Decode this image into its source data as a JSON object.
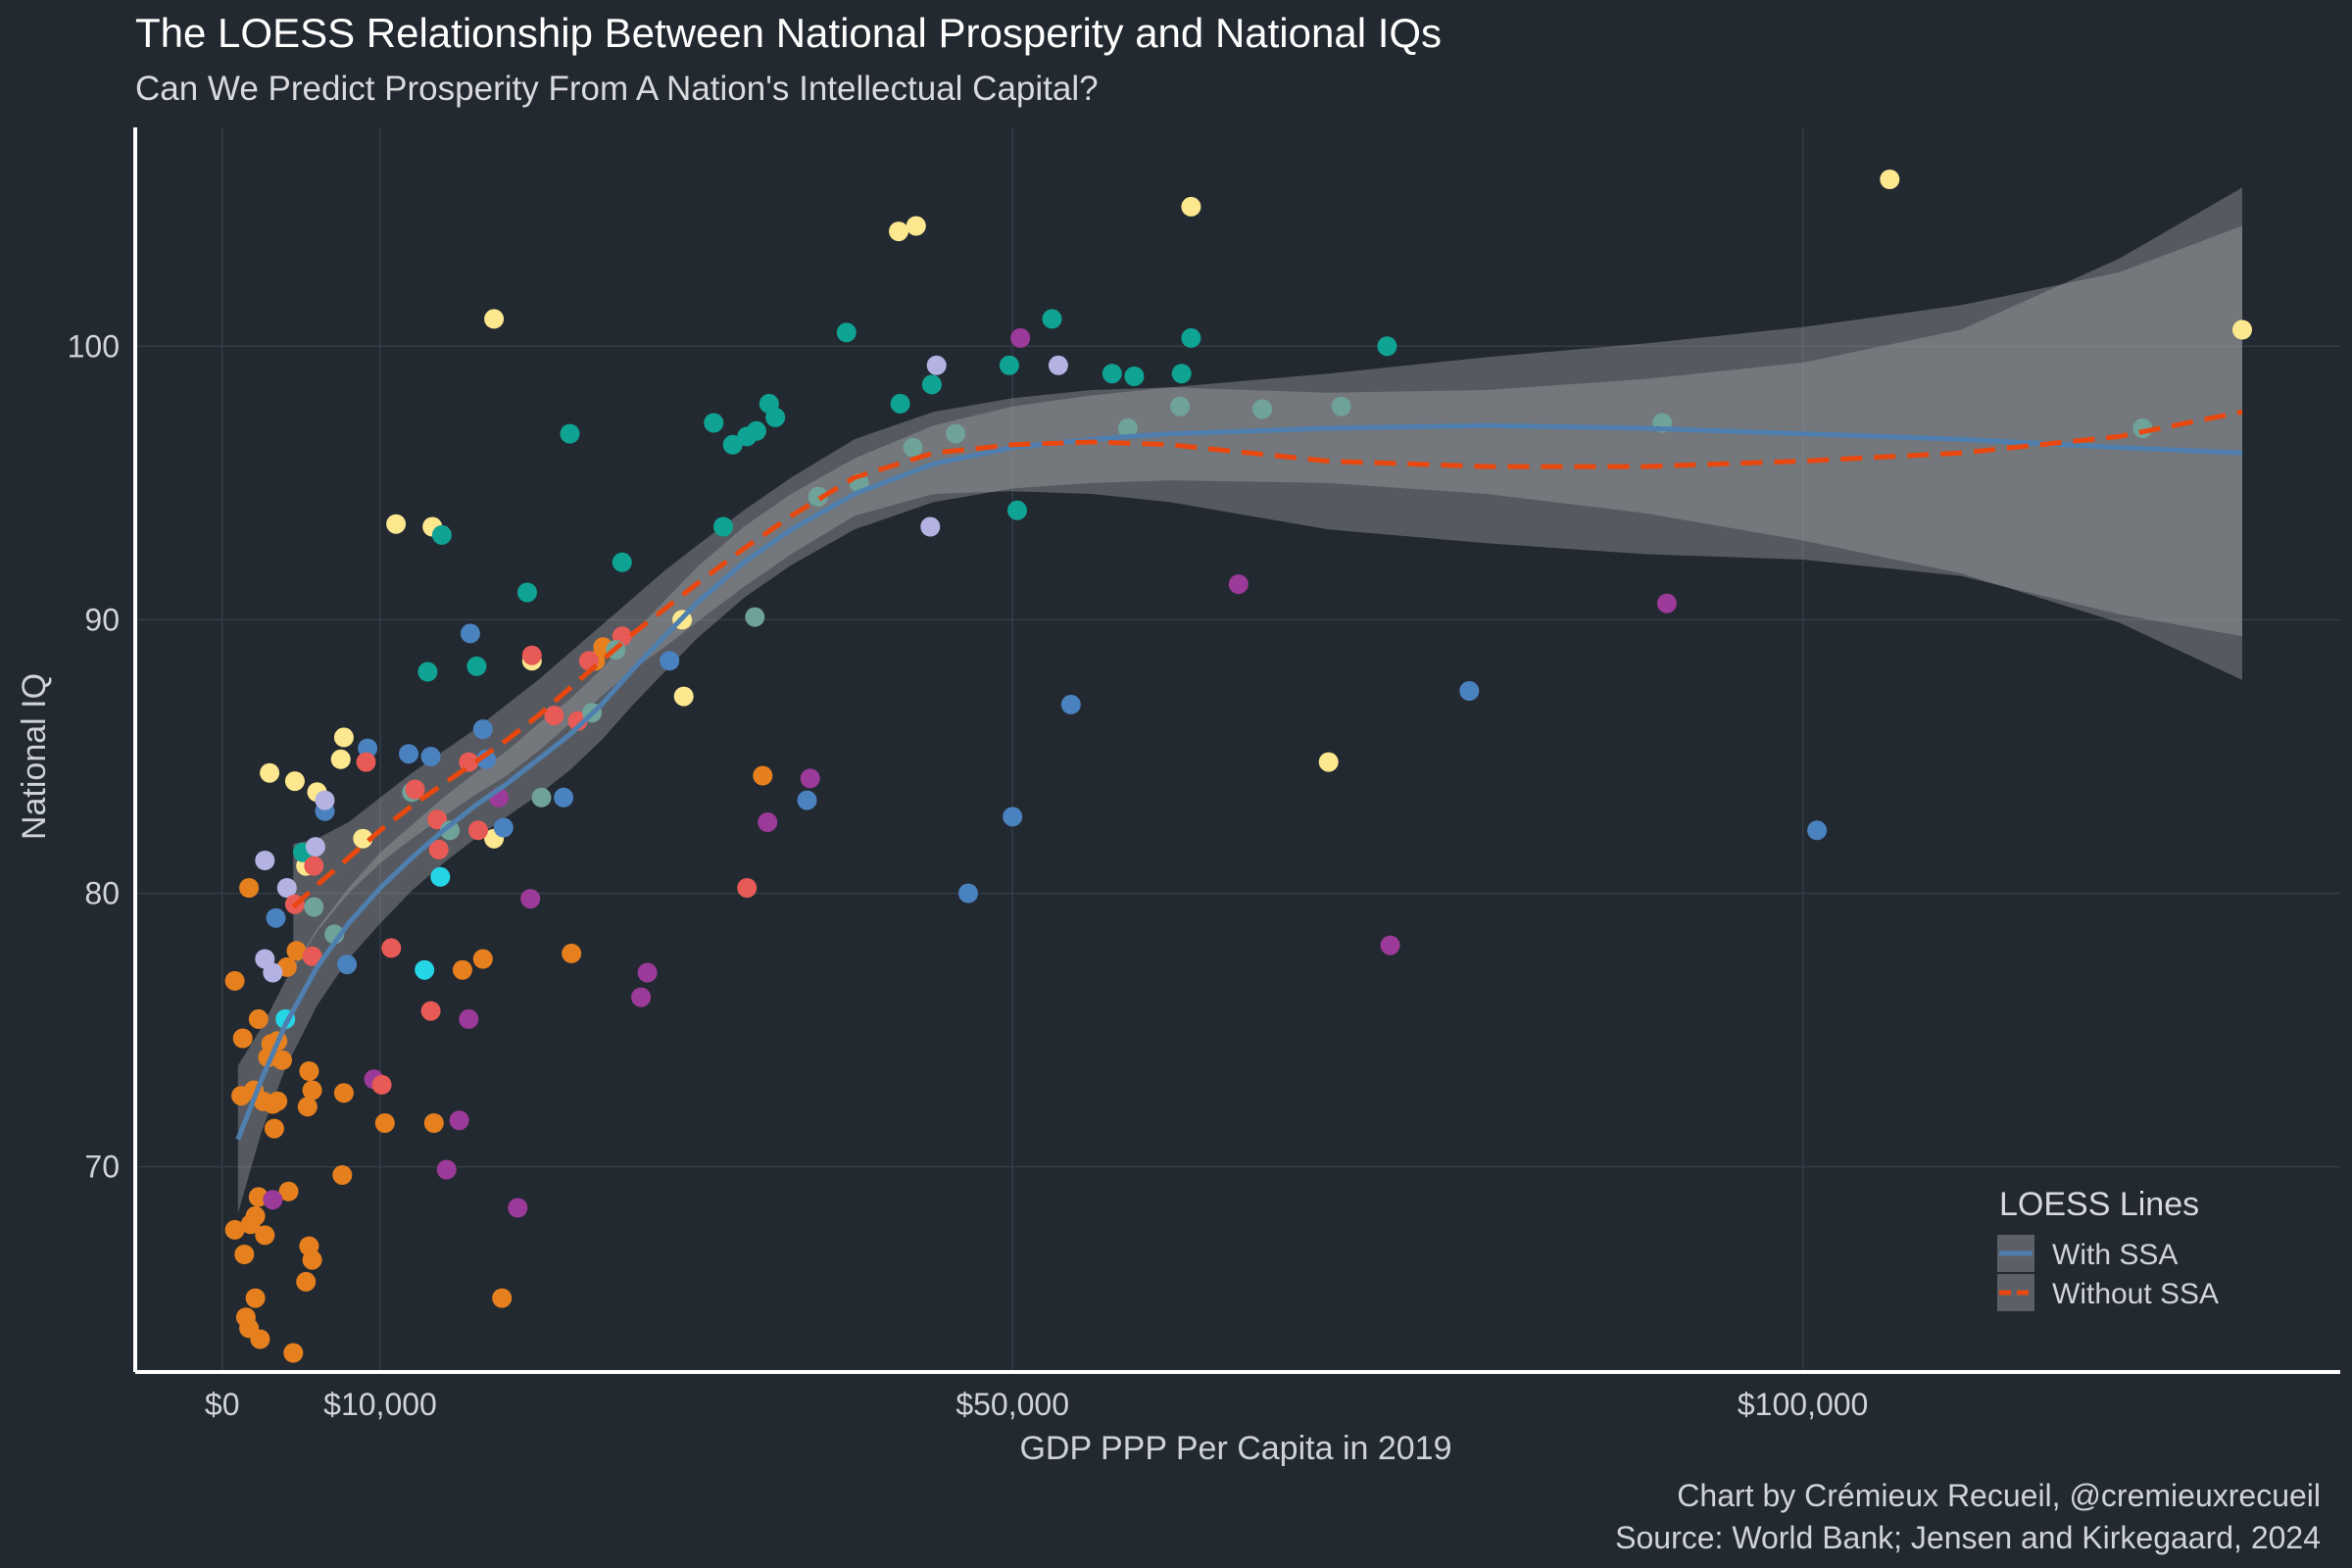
{
  "title": "The LOESS Relationship Between National Prosperity and National IQs",
  "subtitle": "Can We Predict Prosperity From A Nation's Intellectual Capital?",
  "caption_line1": "Chart by Crémieux Recueil, @cremieuxrecueil",
  "caption_line2": "Source: World Bank; Jensen and Kirkegaard, 2024",
  "chart_data": {
    "type": "scatter",
    "title": "The LOESS Relationship Between National Prosperity and National IQs",
    "subtitle": "Can We Predict Prosperity From A Nation's Intellectual Capital?",
    "xlabel": "GDP PPP Per Capita in 2019",
    "ylabel": "National IQ",
    "xlim": [
      -5500,
      134000
    ],
    "ylim": [
      62.5,
      108
    ],
    "x_ticks": [
      0,
      10000,
      50000,
      100000
    ],
    "x_tick_labels": [
      "$0",
      "$10,000",
      "$50,000",
      "$100,000"
    ],
    "y_ticks": [
      70,
      80,
      90,
      100
    ],
    "y_tick_labels": [
      "70",
      "80",
      "90",
      "100"
    ],
    "grid": true,
    "legend": {
      "title": "LOESS Lines",
      "placement": "bottom-right",
      "entries": [
        {
          "label": "With SSA",
          "color": "#4f7fae",
          "style": "solid"
        },
        {
          "label": "Without SSA",
          "color": "#e8480f",
          "style": "dashed"
        }
      ]
    },
    "point_colors": {
      "orange": "#e6801f",
      "yellow": "#fde78f",
      "teal": "#0fa394",
      "blue": "#4a81bf",
      "lavender": "#b4b2e2",
      "purple": "#9b3a98",
      "red": "#e85a55",
      "cyan": "#25d6e6",
      "sage": "#6fa39a"
    },
    "points": [
      {
        "x": 800,
        "y": 76.8,
        "c": "orange"
      },
      {
        "x": 800,
        "y": 67.7,
        "c": "orange"
      },
      {
        "x": 1200,
        "y": 72.6,
        "c": "orange"
      },
      {
        "x": 1300,
        "y": 74.7,
        "c": "orange"
      },
      {
        "x": 1400,
        "y": 66.8,
        "c": "orange"
      },
      {
        "x": 1500,
        "y": 64.5,
        "c": "orange"
      },
      {
        "x": 1700,
        "y": 80.2,
        "c": "orange"
      },
      {
        "x": 1700,
        "y": 64.1,
        "c": "orange"
      },
      {
        "x": 1800,
        "y": 67.9,
        "c": "orange"
      },
      {
        "x": 2000,
        "y": 72.8,
        "c": "orange"
      },
      {
        "x": 2100,
        "y": 68.2,
        "c": "orange"
      },
      {
        "x": 2100,
        "y": 65.2,
        "c": "orange"
      },
      {
        "x": 2300,
        "y": 68.9,
        "c": "orange"
      },
      {
        "x": 2300,
        "y": 75.4,
        "c": "orange"
      },
      {
        "x": 2400,
        "y": 63.7,
        "c": "orange"
      },
      {
        "x": 2600,
        "y": 72.4,
        "c": "orange"
      },
      {
        "x": 2700,
        "y": 67.5,
        "c": "orange"
      },
      {
        "x": 2900,
        "y": 74.0,
        "c": "orange"
      },
      {
        "x": 3100,
        "y": 74.5,
        "c": "orange"
      },
      {
        "x": 3200,
        "y": 72.3,
        "c": "orange"
      },
      {
        "x": 3300,
        "y": 71.4,
        "c": "orange"
      },
      {
        "x": 3500,
        "y": 72.4,
        "c": "orange"
      },
      {
        "x": 3500,
        "y": 74.6,
        "c": "orange"
      },
      {
        "x": 3800,
        "y": 73.9,
        "c": "orange"
      },
      {
        "x": 4100,
        "y": 77.3,
        "c": "orange"
      },
      {
        "x": 4200,
        "y": 69.1,
        "c": "orange"
      },
      {
        "x": 4500,
        "y": 63.2,
        "c": "orange"
      },
      {
        "x": 4700,
        "y": 77.9,
        "c": "orange"
      },
      {
        "x": 5300,
        "y": 65.8,
        "c": "orange"
      },
      {
        "x": 5400,
        "y": 72.2,
        "c": "orange"
      },
      {
        "x": 5500,
        "y": 73.5,
        "c": "orange"
      },
      {
        "x": 5500,
        "y": 67.1,
        "c": "orange"
      },
      {
        "x": 5700,
        "y": 72.8,
        "c": "orange"
      },
      {
        "x": 5700,
        "y": 66.6,
        "c": "orange"
      },
      {
        "x": 7600,
        "y": 69.7,
        "c": "orange"
      },
      {
        "x": 7700,
        "y": 72.7,
        "c": "orange"
      },
      {
        "x": 10300,
        "y": 71.6,
        "c": "orange"
      },
      {
        "x": 13400,
        "y": 71.6,
        "c": "orange"
      },
      {
        "x": 15200,
        "y": 77.2,
        "c": "orange"
      },
      {
        "x": 16500,
        "y": 77.6,
        "c": "orange"
      },
      {
        "x": 17700,
        "y": 65.2,
        "c": "orange"
      },
      {
        "x": 22100,
        "y": 77.8,
        "c": "orange"
      },
      {
        "x": 23600,
        "y": 88.5,
        "c": "orange"
      },
      {
        "x": 24100,
        "y": 89.0,
        "c": "orange"
      },
      {
        "x": 34200,
        "y": 84.3,
        "c": "orange"
      },
      {
        "x": 3000,
        "y": 84.4,
        "c": "yellow"
      },
      {
        "x": 4600,
        "y": 84.1,
        "c": "yellow"
      },
      {
        "x": 5300,
        "y": 81.0,
        "c": "yellow"
      },
      {
        "x": 6000,
        "y": 83.7,
        "c": "yellow"
      },
      {
        "x": 7500,
        "y": 84.9,
        "c": "yellow"
      },
      {
        "x": 7700,
        "y": 85.7,
        "c": "yellow"
      },
      {
        "x": 8900,
        "y": 82.0,
        "c": "yellow"
      },
      {
        "x": 11000,
        "y": 93.5,
        "c": "yellow"
      },
      {
        "x": 13300,
        "y": 93.4,
        "c": "yellow"
      },
      {
        "x": 17200,
        "y": 101.0,
        "c": "yellow"
      },
      {
        "x": 17200,
        "y": 82.0,
        "c": "yellow"
      },
      {
        "x": 19600,
        "y": 88.5,
        "c": "yellow"
      },
      {
        "x": 29200,
        "y": 87.2,
        "c": "yellow"
      },
      {
        "x": 29100,
        "y": 90.0,
        "c": "yellow"
      },
      {
        "x": 42800,
        "y": 104.2,
        "c": "yellow"
      },
      {
        "x": 43900,
        "y": 104.4,
        "c": "yellow"
      },
      {
        "x": 61300,
        "y": 105.1,
        "c": "yellow"
      },
      {
        "x": 70000,
        "y": 84.8,
        "c": "yellow"
      },
      {
        "x": 105500,
        "y": 106.1,
        "c": "yellow"
      },
      {
        "x": 127800,
        "y": 100.6,
        "c": "yellow"
      },
      {
        "x": 5100,
        "y": 81.5,
        "c": "teal"
      },
      {
        "x": 13000,
        "y": 88.1,
        "c": "teal"
      },
      {
        "x": 13900,
        "y": 93.1,
        "c": "teal"
      },
      {
        "x": 16100,
        "y": 88.3,
        "c": "teal"
      },
      {
        "x": 19300,
        "y": 91.0,
        "c": "teal"
      },
      {
        "x": 22000,
        "y": 96.8,
        "c": "teal"
      },
      {
        "x": 25300,
        "y": 92.1,
        "c": "teal"
      },
      {
        "x": 31100,
        "y": 97.2,
        "c": "teal"
      },
      {
        "x": 31700,
        "y": 93.4,
        "c": "teal"
      },
      {
        "x": 32300,
        "y": 96.4,
        "c": "teal"
      },
      {
        "x": 33200,
        "y": 96.7,
        "c": "teal"
      },
      {
        "x": 33800,
        "y": 96.9,
        "c": "teal"
      },
      {
        "x": 34600,
        "y": 97.9,
        "c": "teal"
      },
      {
        "x": 35000,
        "y": 97.4,
        "c": "teal"
      },
      {
        "x": 39500,
        "y": 100.5,
        "c": "teal"
      },
      {
        "x": 42900,
        "y": 97.9,
        "c": "teal"
      },
      {
        "x": 44900,
        "y": 98.6,
        "c": "teal"
      },
      {
        "x": 49800,
        "y": 99.3,
        "c": "teal"
      },
      {
        "x": 50300,
        "y": 94.0,
        "c": "teal"
      },
      {
        "x": 52500,
        "y": 101.0,
        "c": "teal"
      },
      {
        "x": 56300,
        "y": 99.0,
        "c": "teal"
      },
      {
        "x": 57700,
        "y": 98.9,
        "c": "teal"
      },
      {
        "x": 60700,
        "y": 99.0,
        "c": "teal"
      },
      {
        "x": 61300,
        "y": 100.3,
        "c": "teal"
      },
      {
        "x": 73700,
        "y": 100.0,
        "c": "teal"
      },
      {
        "x": 3400,
        "y": 79.1,
        "c": "blue"
      },
      {
        "x": 6500,
        "y": 83.0,
        "c": "blue"
      },
      {
        "x": 7900,
        "y": 77.4,
        "c": "blue"
      },
      {
        "x": 9200,
        "y": 85.3,
        "c": "blue"
      },
      {
        "x": 11800,
        "y": 85.1,
        "c": "blue"
      },
      {
        "x": 13200,
        "y": 85.0,
        "c": "blue"
      },
      {
        "x": 15700,
        "y": 89.5,
        "c": "blue"
      },
      {
        "x": 16500,
        "y": 86.0,
        "c": "blue"
      },
      {
        "x": 16700,
        "y": 84.9,
        "c": "blue"
      },
      {
        "x": 17800,
        "y": 82.4,
        "c": "blue"
      },
      {
        "x": 21600,
        "y": 83.5,
        "c": "blue"
      },
      {
        "x": 28300,
        "y": 88.5,
        "c": "blue"
      },
      {
        "x": 37000,
        "y": 83.4,
        "c": "blue"
      },
      {
        "x": 47200,
        "y": 80.0,
        "c": "blue"
      },
      {
        "x": 50000,
        "y": 82.8,
        "c": "blue"
      },
      {
        "x": 53700,
        "y": 86.9,
        "c": "blue"
      },
      {
        "x": 78900,
        "y": 87.4,
        "c": "blue"
      },
      {
        "x": 100900,
        "y": 82.3,
        "c": "blue"
      },
      {
        "x": 2700,
        "y": 81.2,
        "c": "lavender"
      },
      {
        "x": 2700,
        "y": 77.6,
        "c": "lavender"
      },
      {
        "x": 3200,
        "y": 77.1,
        "c": "lavender"
      },
      {
        "x": 4100,
        "y": 80.2,
        "c": "lavender"
      },
      {
        "x": 5900,
        "y": 81.7,
        "c": "lavender"
      },
      {
        "x": 6500,
        "y": 83.4,
        "c": "lavender"
      },
      {
        "x": 45200,
        "y": 99.3,
        "c": "lavender"
      },
      {
        "x": 52900,
        "y": 99.3,
        "c": "lavender"
      },
      {
        "x": 44800,
        "y": 93.4,
        "c": "lavender"
      },
      {
        "x": 3200,
        "y": 68.8,
        "c": "purple"
      },
      {
        "x": 9600,
        "y": 73.2,
        "c": "purple"
      },
      {
        "x": 14200,
        "y": 69.9,
        "c": "purple"
      },
      {
        "x": 15000,
        "y": 71.7,
        "c": "purple"
      },
      {
        "x": 15600,
        "y": 75.4,
        "c": "purple"
      },
      {
        "x": 18700,
        "y": 68.5,
        "c": "purple"
      },
      {
        "x": 19500,
        "y": 79.8,
        "c": "purple"
      },
      {
        "x": 26500,
        "y": 76.2,
        "c": "purple"
      },
      {
        "x": 26900,
        "y": 77.1,
        "c": "purple"
      },
      {
        "x": 34500,
        "y": 82.6,
        "c": "purple"
      },
      {
        "x": 37200,
        "y": 84.2,
        "c": "purple"
      },
      {
        "x": 50500,
        "y": 100.3,
        "c": "purple"
      },
      {
        "x": 64300,
        "y": 91.3,
        "c": "purple"
      },
      {
        "x": 73900,
        "y": 78.1,
        "c": "purple"
      },
      {
        "x": 91400,
        "y": 90.6,
        "c": "purple"
      },
      {
        "x": 4600,
        "y": 79.6,
        "c": "red"
      },
      {
        "x": 5700,
        "y": 77.7,
        "c": "red"
      },
      {
        "x": 5800,
        "y": 81.0,
        "c": "red"
      },
      {
        "x": 9100,
        "y": 84.8,
        "c": "red"
      },
      {
        "x": 10700,
        "y": 78.0,
        "c": "red"
      },
      {
        "x": 13200,
        "y": 75.7,
        "c": "red"
      },
      {
        "x": 13700,
        "y": 81.6,
        "c": "red"
      },
      {
        "x": 15600,
        "y": 84.8,
        "c": "red"
      },
      {
        "x": 19600,
        "y": 88.7,
        "c": "red"
      },
      {
        "x": 23200,
        "y": 88.5,
        "c": "red"
      },
      {
        "x": 25300,
        "y": 89.4,
        "c": "red"
      },
      {
        "x": 33200,
        "y": 80.2,
        "c": "red"
      },
      {
        "x": 10100,
        "y": 73.0,
        "c": "red"
      },
      {
        "x": 4000,
        "y": 75.4,
        "c": "cyan"
      },
      {
        "x": 12800,
        "y": 77.2,
        "c": "cyan"
      },
      {
        "x": 13800,
        "y": 80.6,
        "c": "cyan"
      },
      {
        "x": 5800,
        "y": 79.5,
        "c": "sage"
      },
      {
        "x": 7100,
        "y": 78.5,
        "c": "sage"
      },
      {
        "x": 12000,
        "y": 83.7,
        "c": "sage"
      },
      {
        "x": 20200,
        "y": 83.5,
        "c": "sage"
      },
      {
        "x": 33700,
        "y": 90.1,
        "c": "sage"
      },
      {
        "x": 37700,
        "y": 94.5,
        "c": "sage"
      },
      {
        "x": 40300,
        "y": 95.0,
        "c": "sage"
      },
      {
        "x": 43700,
        "y": 96.3,
        "c": "sage"
      },
      {
        "x": 46400,
        "y": 96.8,
        "c": "sage"
      },
      {
        "x": 57300,
        "y": 97.0,
        "c": "sage"
      },
      {
        "x": 60600,
        "y": 97.8,
        "c": "sage"
      },
      {
        "x": 65800,
        "y": 97.7,
        "c": "sage"
      },
      {
        "x": 70800,
        "y": 97.8,
        "c": "sage"
      },
      {
        "x": 91100,
        "y": 97.2,
        "c": "sage"
      },
      {
        "x": 121500,
        "y": 97.0,
        "c": "sage"
      },
      {
        "x": 12200,
        "y": 83.8,
        "c": "red"
      },
      {
        "x": 13600,
        "y": 82.7,
        "c": "red"
      },
      {
        "x": 21000,
        "y": 86.5,
        "c": "red"
      },
      {
        "x": 22500,
        "y": 86.3,
        "c": "red"
      },
      {
        "x": 24900,
        "y": 88.9,
        "c": "sage"
      },
      {
        "x": 23400,
        "y": 86.6,
        "c": "sage"
      },
      {
        "x": 14400,
        "y": 82.3,
        "c": "sage"
      },
      {
        "x": 16200,
        "y": 82.3,
        "c": "red"
      },
      {
        "x": 17500,
        "y": 83.5,
        "c": "purple"
      }
    ],
    "series": [
      {
        "name": "With SSA",
        "style": "solid",
        "color": "#4f7fae",
        "x": [
          1000,
          2500,
          4000,
          6000,
          8000,
          10000,
          12000,
          14000,
          16000,
          18000,
          20000,
          22000,
          24000,
          26000,
          28000,
          30000,
          33000,
          36000,
          40000,
          45000,
          50000,
          55000,
          60000,
          70000,
          80000,
          90000,
          100000,
          110000,
          120000,
          127800
        ],
        "y": [
          71.0,
          73.2,
          75.2,
          77.3,
          78.9,
          80.2,
          81.3,
          82.3,
          83.2,
          84.0,
          84.9,
          85.8,
          86.9,
          88.2,
          89.4,
          90.6,
          92.1,
          93.3,
          94.6,
          95.7,
          96.3,
          96.6,
          96.8,
          97.0,
          97.1,
          97.0,
          96.8,
          96.6,
          96.3,
          96.1
        ],
        "ci_lower": [
          68.3,
          71.3,
          73.6,
          75.9,
          77.6,
          78.9,
          80.1,
          81.1,
          82.0,
          82.8,
          83.6,
          84.5,
          85.6,
          86.9,
          88.1,
          89.3,
          90.8,
          92.0,
          93.3,
          94.3,
          94.8,
          95.0,
          95.1,
          95.0,
          94.6,
          93.9,
          92.9,
          91.7,
          89.9,
          87.8
        ],
        "ci_upper": [
          73.7,
          75.1,
          76.8,
          78.7,
          80.2,
          81.5,
          82.5,
          83.5,
          84.4,
          85.2,
          86.2,
          87.1,
          88.2,
          89.5,
          90.7,
          91.9,
          93.4,
          94.6,
          95.9,
          97.1,
          97.8,
          98.2,
          98.5,
          99.0,
          99.6,
          100.1,
          100.7,
          101.5,
          102.7,
          104.4
        ]
      },
      {
        "name": "Without SSA",
        "style": "dashed",
        "color": "#e8480f",
        "x": [
          4500,
          6000,
          8000,
          10000,
          12000,
          14000,
          16000,
          18000,
          20000,
          22000,
          24000,
          26000,
          28000,
          30000,
          33000,
          36000,
          40000,
          45000,
          50000,
          55000,
          60000,
          65000,
          70000,
          80000,
          90000,
          100000,
          110000,
          120000,
          127800
        ],
        "y": [
          79.5,
          80.3,
          81.3,
          82.3,
          83.2,
          84.0,
          84.8,
          85.6,
          86.5,
          87.5,
          88.5,
          89.5,
          90.4,
          91.3,
          92.6,
          93.8,
          95.2,
          96.1,
          96.4,
          96.5,
          96.4,
          96.1,
          95.8,
          95.6,
          95.6,
          95.8,
          96.1,
          96.7,
          97.6
        ],
        "ci_lower": [
          77.2,
          78.6,
          80.0,
          81.1,
          82.0,
          82.8,
          83.6,
          84.3,
          85.2,
          86.2,
          87.2,
          88.2,
          89.0,
          89.9,
          91.2,
          92.4,
          93.8,
          94.6,
          94.7,
          94.6,
          94.3,
          93.8,
          93.3,
          92.8,
          92.4,
          92.2,
          91.6,
          90.2,
          89.4
        ],
        "ci_upper": [
          81.8,
          82.0,
          82.6,
          83.5,
          84.4,
          85.2,
          86.0,
          86.9,
          87.8,
          88.8,
          89.8,
          90.8,
          91.8,
          92.7,
          94.0,
          95.2,
          96.6,
          97.6,
          98.1,
          98.4,
          98.5,
          98.4,
          98.3,
          98.4,
          98.8,
          99.4,
          100.6,
          103.2,
          105.8
        ]
      }
    ]
  }
}
